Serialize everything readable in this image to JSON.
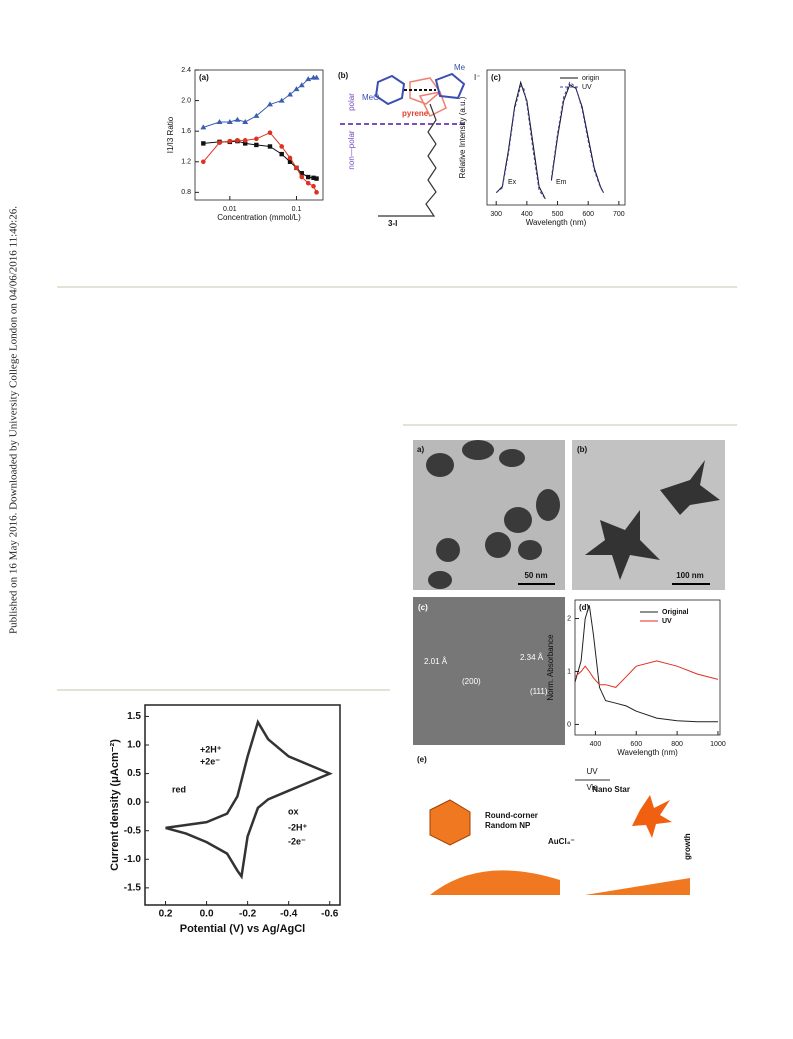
{
  "side_note": "Published on 16 May 2016. Downloaded by University College London on 04/06/2016 11:40:26.",
  "chart_data": [
    {
      "type": "line",
      "panel_label": "(a)",
      "x_label": "Concentration (mmol/L)",
      "y_label": "I1/I3 Ratio",
      "log_x": true,
      "x": [
        0.004,
        0.007,
        0.01,
        0.013,
        0.017,
        0.025,
        0.04,
        0.06,
        0.08,
        0.1,
        0.12,
        0.15,
        0.18,
        0.2
      ],
      "series": [
        {
          "color": "#3a5fb0",
          "marker": "triangle",
          "values": [
            1.65,
            1.72,
            1.72,
            1.75,
            1.72,
            1.8,
            1.95,
            2.0,
            2.08,
            2.15,
            2.2,
            2.28,
            2.3,
            2.3
          ]
        },
        {
          "color": "#111111",
          "marker": "square",
          "values": [
            1.44,
            1.46,
            1.46,
            1.47,
            1.44,
            1.42,
            1.4,
            1.3,
            1.2,
            1.12,
            1.05,
            1.0,
            0.99,
            0.98
          ]
        },
        {
          "color": "#e03020",
          "marker": "circle",
          "values": [
            1.2,
            1.45,
            1.47,
            1.48,
            1.48,
            1.5,
            1.58,
            1.4,
            1.25,
            1.12,
            1.0,
            0.92,
            0.88,
            0.8
          ]
        }
      ],
      "xlim": [
        0.003,
        0.25
      ],
      "xticks": [
        0.01,
        0.1
      ],
      "ylim": [
        0.7,
        2.4
      ],
      "yticks": [
        0.8,
        1.2,
        1.6,
        {
          "value": 2.0,
          "label": "2.0"
        },
        2.4
      ]
    },
    {
      "type": "line",
      "panel_label": "(c)",
      "x_label": "Wavelength (nm)",
      "y_label": "Relative Intensity (a.u.)",
      "x": [
        300,
        320,
        340,
        360,
        380,
        390,
        400,
        420,
        440,
        460,
        470,
        480,
        500,
        520,
        540,
        560,
        580,
        600,
        620,
        640,
        650
      ],
      "series": [
        {
          "name": "origin",
          "color": "#111111",
          "values": [
            0.1,
            0.15,
            0.45,
            0.8,
            1.0,
            0.92,
            0.85,
            0.5,
            0.15,
            0.05,
            null,
            0.2,
            0.55,
            0.85,
            0.98,
            0.95,
            0.8,
            0.55,
            0.3,
            0.15,
            0.1
          ]
        },
        {
          "name": "UV",
          "color": "#4040b0",
          "dashed": true,
          "values": [
            0.1,
            0.14,
            0.42,
            0.78,
            0.97,
            0.95,
            0.82,
            0.45,
            0.12,
            0.05,
            null,
            0.22,
            0.58,
            0.88,
            1.0,
            0.96,
            0.78,
            0.52,
            0.28,
            0.14,
            0.1
          ]
        }
      ],
      "annotations": [
        "Ex",
        "Em"
      ],
      "xlim": [
        270,
        720
      ],
      "xticks": [
        300,
        400,
        500,
        600,
        700
      ],
      "ylim": [
        0,
        1.1
      ]
    },
    {
      "type": "line",
      "x_label": "Potential (V) vs Ag/AgCl",
      "y_label": "Current density (μAcm⁻²)",
      "series": [
        {
          "color": "#333333",
          "x": [
            0.2,
            0.1,
            0.0,
            -0.1,
            -0.15,
            -0.2,
            -0.25,
            -0.3,
            -0.4,
            -0.5,
            -0.6,
            -0.5,
            -0.4,
            -0.3,
            -0.25,
            -0.2,
            -0.17,
            -0.15,
            -0.1,
            0.0,
            0.1,
            0.2
          ],
          "values": [
            -0.45,
            -0.4,
            -0.35,
            -0.2,
            0.1,
            0.8,
            1.4,
            1.1,
            0.8,
            0.65,
            0.5,
            0.35,
            0.2,
            0.05,
            -0.1,
            -0.6,
            -1.3,
            -1.2,
            -0.9,
            -0.7,
            -0.55,
            -0.45
          ]
        }
      ],
      "annotations": [
        "red",
        "+2H⁺",
        "+2e⁻",
        "ox",
        "-2H⁺",
        "-2e⁻"
      ],
      "xlim": [
        0.3,
        -0.65
      ],
      "xticks": [
        0.2,
        {
          "value": 0,
          "label": "0.0"
        },
        -0.2,
        -0.4,
        -0.6
      ],
      "ylim": [
        -1.8,
        1.7
      ],
      "yticks": [
        1.5,
        {
          "value": 1,
          "label": "1.0"
        },
        0.5,
        {
          "value": 0,
          "label": "0.0"
        },
        -0.5,
        {
          "value": -1,
          "label": "-1.0"
        },
        -1.5
      ]
    },
    {
      "type": "line",
      "panel_label": "(d)",
      "x_label": "Wavelength (nm)",
      "y_label": "Norm. Absorbance",
      "x": [
        300,
        330,
        350,
        370,
        390,
        420,
        450,
        500,
        550,
        600,
        700,
        800,
        900,
        1000
      ],
      "series": [
        {
          "name": "Original",
          "color": "#222222",
          "values": [
            0.8,
            1.2,
            2.0,
            2.25,
            1.7,
            0.7,
            0.45,
            0.4,
            0.35,
            0.25,
            0.12,
            0.07,
            0.05,
            0.05
          ]
        },
        {
          "name": "UV",
          "color": "#e03020",
          "values": [
            0.9,
            1.0,
            1.1,
            1.0,
            0.88,
            0.75,
            0.75,
            0.7,
            0.9,
            1.1,
            1.2,
            1.1,
            0.95,
            0.85
          ]
        }
      ],
      "xlim": [
        300,
        1010
      ],
      "xticks": [
        400,
        600,
        800,
        1000
      ],
      "ylim": [
        -0.2,
        2.35
      ],
      "yticks": [
        0,
        1,
        2
      ]
    }
  ],
  "figure1_b": {
    "label": "(b)",
    "meo": "MeO",
    "me": "Me",
    "iodide": "I⁻",
    "pyrene": "pyrene",
    "polar": "polar",
    "nonpolar": "non—polar",
    "compound": "3-I"
  },
  "figure2": {
    "a": "a)",
    "b": "(b)",
    "scale_a": "50 nm",
    "scale_b": "100 nm",
    "c": "(c)",
    "d1": "2.01 Å",
    "p1": "(200)",
    "d2": "2.34 Å",
    "p2": "(111)",
    "e": "(e)",
    "uv": "UV",
    "vis": "Vis",
    "np1": "Round-corner",
    "np2": "Random NP",
    "star": "Nano Star",
    "aucl": "AuCl₄⁻",
    "growth": "growth"
  }
}
